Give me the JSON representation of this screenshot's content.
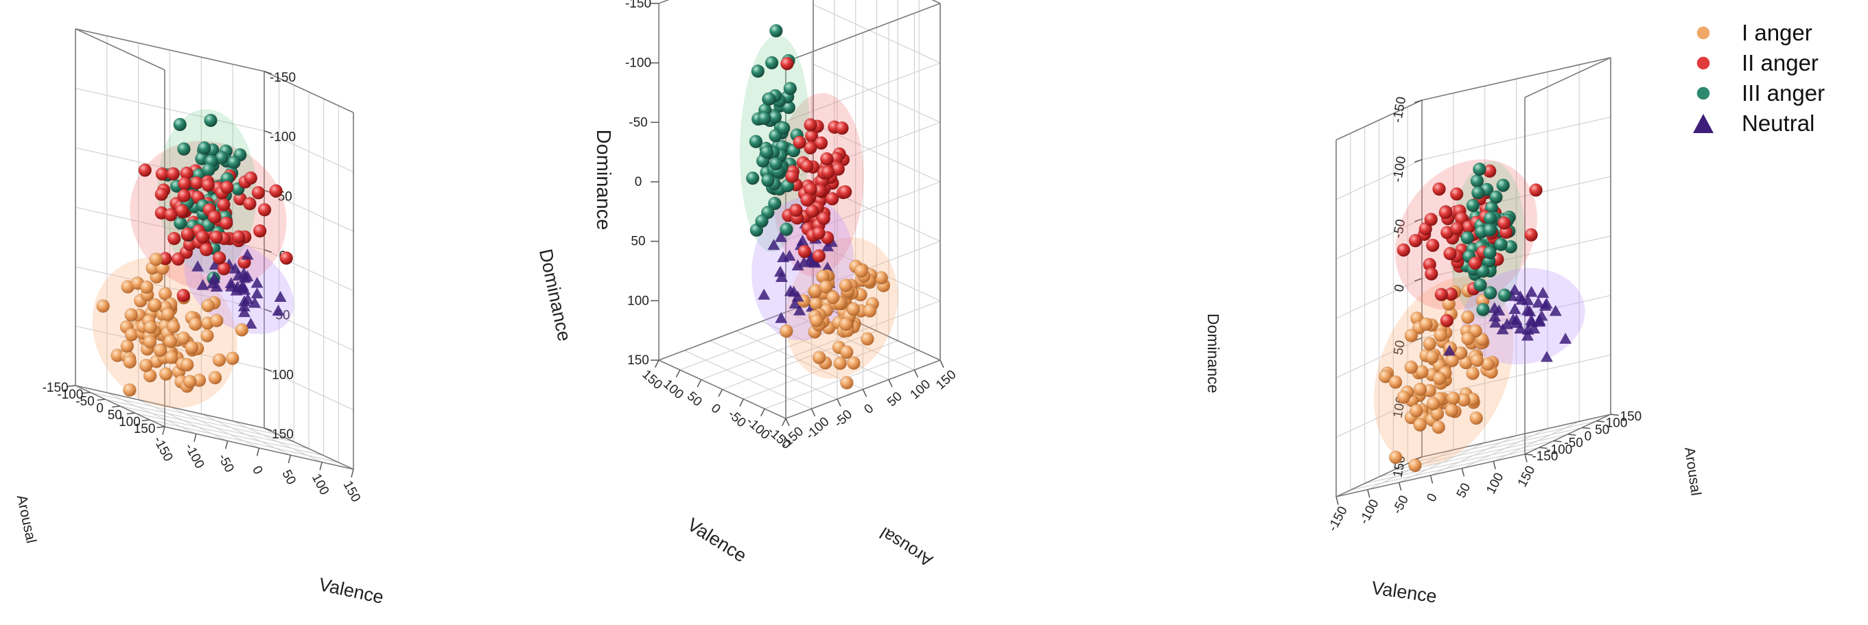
{
  "legend": [
    {
      "label": "I  anger",
      "key": "I",
      "color": "#f0a868",
      "marker": "sphere"
    },
    {
      "label": "II anger",
      "key": "II",
      "color": "#e03a3a",
      "marker": "sphere"
    },
    {
      "label": "III anger",
      "key": "III",
      "color": "#2e8a6e",
      "marker": "sphere"
    },
    {
      "label": "Neutral",
      "key": "N",
      "color": "#3d1f7a",
      "marker": "triangle"
    }
  ],
  "chart_data": [
    {
      "type": "scatter",
      "projection": "3d",
      "view": "left",
      "axes": {
        "x": {
          "label": "Valence",
          "ticks": [
            "-150",
            "-100",
            "-50",
            "0",
            "50",
            "100",
            "150"
          ],
          "range": [
            -150,
            150
          ]
        },
        "y": {
          "label": "Arousal",
          "ticks": [
            "150",
            "100",
            "50",
            "0",
            "-50",
            "-100",
            "-150"
          ],
          "range": [
            -150,
            150
          ]
        },
        "z": {
          "label": "Dominance",
          "ticks": [
            "150",
            "100",
            "50",
            "0",
            "-50",
            "-100",
            "-150"
          ],
          "range": [
            -150,
            150
          ]
        }
      },
      "grid": true,
      "clusters": [
        {
          "series": "I",
          "center": [
            -105,
            40,
            -80
          ],
          "spread": [
            40,
            45,
            22
          ],
          "count": 95
        },
        {
          "series": "II",
          "center": [
            -20,
            40,
            30
          ],
          "spread": [
            45,
            35,
            25
          ],
          "count": 75
        },
        {
          "series": "III",
          "center": [
            -20,
            20,
            50
          ],
          "spread": [
            22,
            20,
            25
          ],
          "count": 60
        },
        {
          "series": "N",
          "center": [
            30,
            20,
            -25
          ],
          "spread": [
            32,
            18,
            10
          ],
          "count": 30
        }
      ]
    },
    {
      "type": "scatter",
      "projection": "3d",
      "view": "center",
      "axes": {
        "x": {
          "label": "Valence",
          "ticks": [
            "-150",
            "-100",
            "-50",
            "0",
            "50",
            "100",
            "150"
          ],
          "range": [
            -150,
            150
          ]
        },
        "y": {
          "label": "Arousal",
          "ticks": [
            "-150",
            "-100",
            "-50",
            "0",
            "50",
            "100",
            "150"
          ],
          "range": [
            -150,
            150
          ]
        },
        "z": {
          "label": "Dominance",
          "ticks": [
            "150",
            "100",
            "50",
            "0",
            "-50",
            "-100",
            "-150"
          ],
          "range": [
            -150,
            150
          ]
        }
      },
      "grid": true,
      "clusters": [
        {
          "series": "I",
          "center": [
            -95,
            0,
            -90
          ],
          "spread": [
            28,
            25,
            22
          ],
          "count": 70
        },
        {
          "series": "II",
          "center": [
            -70,
            -20,
            10
          ],
          "spread": [
            22,
            20,
            28
          ],
          "count": 65
        },
        {
          "series": "III",
          "center": [
            10,
            -40,
            30
          ],
          "spread": [
            15,
            15,
            35
          ],
          "count": 60
        },
        {
          "series": "N",
          "center": [
            20,
            20,
            -80
          ],
          "spread": [
            32,
            25,
            18
          ],
          "count": 35
        }
      ]
    },
    {
      "type": "scatter",
      "projection": "3d",
      "view": "right",
      "axes": {
        "x": {
          "label": "Valence",
          "ticks": [
            "150",
            "100",
            "50",
            "0",
            "-50",
            "-100",
            "-150"
          ],
          "range": [
            -150,
            150
          ]
        },
        "y": {
          "label": "Arousal",
          "ticks": [
            "-150",
            "-100",
            "-50",
            "0",
            "50",
            "100",
            "150"
          ],
          "range": [
            -150,
            150
          ]
        },
        "z": {
          "label": "Dominance",
          "ticks": [
            "150",
            "100",
            "50",
            "0",
            "-50",
            "-100",
            "-150"
          ],
          "range": [
            -150,
            150
          ]
        }
      },
      "grid": true,
      "clusters": [
        {
          "series": "I",
          "center": [
            -60,
            20,
            -80
          ],
          "spread": [
            35,
            40,
            28
          ],
          "count": 90
        },
        {
          "series": "II",
          "center": [
            0,
            -20,
            40
          ],
          "spread": [
            45,
            35,
            25
          ],
          "count": 60
        },
        {
          "series": "III",
          "center": [
            30,
            -20,
            25
          ],
          "spread": [
            15,
            15,
            25
          ],
          "count": 55
        },
        {
          "series": "N",
          "center": [
            80,
            0,
            -45
          ],
          "spread": [
            30,
            20,
            15
          ],
          "count": 35
        }
      ]
    }
  ]
}
